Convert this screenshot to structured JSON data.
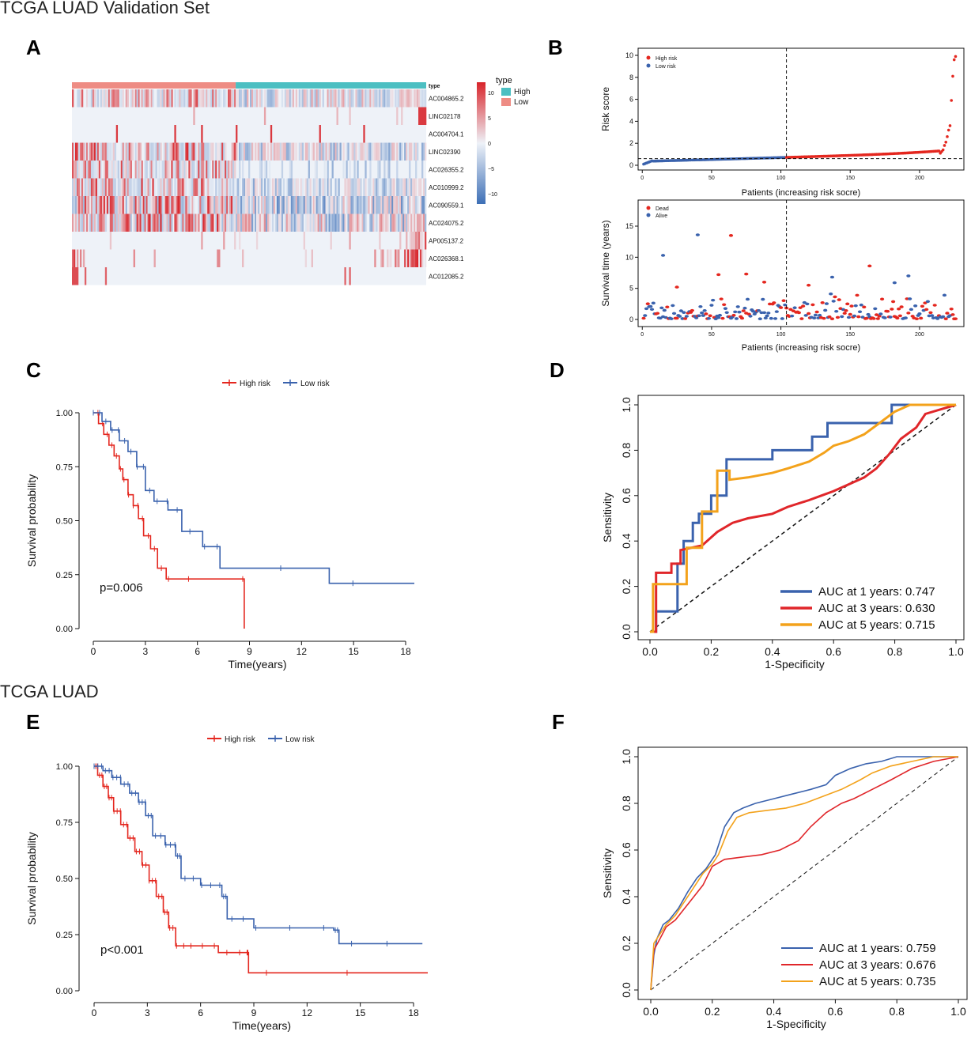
{
  "sections": {
    "top": "TCGA LUAD Validation Set",
    "bottom": "TCGA LUAD"
  },
  "panels": {
    "A": "A",
    "B": "B",
    "C": "C",
    "D": "D",
    "E": "E",
    "F": "F"
  },
  "colors": {
    "high": "#e4271f",
    "low": "#3a62ad",
    "auc3": "#e0262a",
    "auc5": "#f3a21b",
    "heat_pos": "#d8242a",
    "heat_neg": "#3d6fb6",
    "heat_mid": "#eef2f8",
    "type_high": "#4cbfc2",
    "type_low": "#ee8c84"
  },
  "chart_data": [
    {
      "id": "A",
      "type": "heatmap",
      "row_labels": [
        "AC004865.2",
        "LINC02178",
        "AC004704.1",
        "LINC02390",
        "AC026355.2",
        "AC010999.2",
        "AC090559.1",
        "AC024075.2",
        "AP005137.2",
        "AC026368.1",
        "AC012085.2"
      ],
      "annotation_label": "type",
      "groups": [
        {
          "name": "Low",
          "count": 104
        },
        {
          "name": "High",
          "count": 121
        }
      ],
      "legend_title": "type",
      "legend_entries": [
        "High",
        "Low"
      ],
      "colorbar_ticks": [
        "10",
        "5",
        "0",
        "−5",
        "−10"
      ],
      "colorbar_range": [
        -12,
        12
      ]
    },
    {
      "id": "B1",
      "type": "scatter",
      "xlabel": "Patients (increasing risk socre)",
      "ylabel": "Risk score",
      "xlim": [
        0,
        230
      ],
      "ylim": [
        0,
        10
      ],
      "xticks": [
        "0",
        "50",
        "100",
        "150",
        "200"
      ],
      "yticks": [
        "0",
        "2",
        "4",
        "6",
        "8",
        "10"
      ],
      "legend": [
        "High risk",
        "Low risk"
      ],
      "cutoff_index": 104,
      "cutoff_value": 0.6,
      "tail_values": [
        1.1,
        1.25,
        1.4,
        1.8,
        2.1,
        2.6,
        3.2,
        3.6,
        5.9,
        8.1,
        9.6,
        9.9
      ]
    },
    {
      "id": "B2",
      "type": "scatter",
      "xlabel": "Patients (increasing risk socre)",
      "ylabel": "Survival time (years)",
      "xlim": [
        0,
        230
      ],
      "ylim": [
        0,
        18
      ],
      "xticks": [
        "0",
        "50",
        "100",
        "150",
        "200"
      ],
      "yticks": [
        "0",
        "5",
        "10",
        "15"
      ],
      "legend": [
        "Dead",
        "Alive"
      ],
      "cutoff_index": 104,
      "highlights": [
        {
          "x": 15,
          "y": 10.3,
          "status": "Alive"
        },
        {
          "x": 40,
          "y": 13.6,
          "status": "Alive"
        },
        {
          "x": 64,
          "y": 13.5,
          "status": "Dead"
        },
        {
          "x": 55,
          "y": 7.2,
          "status": "Dead"
        },
        {
          "x": 75,
          "y": 7.3,
          "status": "Dead"
        },
        {
          "x": 164,
          "y": 8.6,
          "status": "Dead"
        },
        {
          "x": 137,
          "y": 6.8,
          "status": "Alive"
        },
        {
          "x": 192,
          "y": 7.0,
          "status": "Alive"
        },
        {
          "x": 25,
          "y": 5.2,
          "status": "Dead"
        },
        {
          "x": 88,
          "y": 6.0,
          "status": "Dead"
        },
        {
          "x": 120,
          "y": 5.5,
          "status": "Dead"
        },
        {
          "x": 182,
          "y": 5.9,
          "status": "Alive"
        }
      ]
    },
    {
      "id": "C",
      "type": "line",
      "title": "",
      "legend": [
        "High risk",
        "Low risk"
      ],
      "xlabel": "Time(years)",
      "ylabel": "Survival probability",
      "xlim": [
        0,
        19
      ],
      "ylim": [
        0,
        1
      ],
      "xticks": [
        "0",
        "3",
        "6",
        "9",
        "12",
        "15",
        "18"
      ],
      "yticks": [
        "0.00",
        "0.25",
        "0.50",
        "0.75",
        "1.00"
      ],
      "annotation": "p=0.006",
      "series": [
        {
          "name": "High risk",
          "x": [
            0,
            0.3,
            0.6,
            0.9,
            1.2,
            1.5,
            1.7,
            2.0,
            2.3,
            2.6,
            2.9,
            3.3,
            3.7,
            4.2,
            4.6,
            8.6,
            8.7
          ],
          "y": [
            1,
            0.95,
            0.9,
            0.85,
            0.8,
            0.74,
            0.69,
            0.62,
            0.57,
            0.51,
            0.43,
            0.37,
            0.28,
            0.23,
            0.23,
            0.23,
            0
          ]
        },
        {
          "name": "Low risk",
          "x": [
            0,
            0.5,
            1.0,
            1.5,
            2.0,
            2.5,
            3.0,
            3.5,
            4.3,
            5.1,
            6.3,
            7.3,
            13.6,
            18.5
          ],
          "y": [
            1,
            0.96,
            0.92,
            0.87,
            0.82,
            0.75,
            0.64,
            0.59,
            0.55,
            0.45,
            0.38,
            0.28,
            0.21,
            0.21
          ]
        }
      ]
    },
    {
      "id": "D",
      "type": "line",
      "xlabel": "1-Specificity",
      "ylabel": "Sensitivity",
      "xlim": [
        0,
        1
      ],
      "ylim": [
        0,
        1
      ],
      "xticks": [
        "0.0",
        "0.2",
        "0.4",
        "0.6",
        "0.8",
        "1.0"
      ],
      "yticks": [
        "0.0",
        "0.2",
        "0.4",
        "0.6",
        "0.8",
        "1.0"
      ],
      "series": [
        {
          "name": "AUC at 1 years: 0.747",
          "x": [
            0,
            0.02,
            0.02,
            0.09,
            0.09,
            0.11,
            0.11,
            0.14,
            0.14,
            0.16,
            0.16,
            0.2,
            0.2,
            0.25,
            0.25,
            0.4,
            0.4,
            0.53,
            0.53,
            0.58,
            0.58,
            0.65,
            0.65,
            0.79,
            0.79,
            1.0
          ],
          "y": [
            0,
            0,
            0.09,
            0.09,
            0.3,
            0.3,
            0.4,
            0.4,
            0.48,
            0.48,
            0.52,
            0.52,
            0.6,
            0.6,
            0.76,
            0.76,
            0.8,
            0.8,
            0.86,
            0.86,
            0.92,
            0.92,
            0.92,
            0.92,
            1.0,
            1.0
          ]
        },
        {
          "name": "AUC at 3 years: 0.630",
          "x": [
            0,
            0.02,
            0.02,
            0.07,
            0.07,
            0.1,
            0.1,
            0.17,
            0.22,
            0.27,
            0.32,
            0.4,
            0.45,
            0.52,
            0.56,
            0.6,
            0.65,
            0.7,
            0.74,
            0.78,
            0.82,
            0.87,
            0.9,
            0.95,
            1.0
          ],
          "y": [
            0,
            0,
            0.26,
            0.26,
            0.3,
            0.3,
            0.36,
            0.38,
            0.44,
            0.48,
            0.5,
            0.52,
            0.55,
            0.58,
            0.6,
            0.62,
            0.65,
            0.68,
            0.72,
            0.78,
            0.85,
            0.9,
            0.96,
            0.98,
            1.0
          ]
        },
        {
          "name": "AUC at 5 years: 0.715",
          "x": [
            0,
            0.01,
            0.01,
            0.12,
            0.12,
            0.17,
            0.17,
            0.22,
            0.22,
            0.26,
            0.26,
            0.32,
            0.4,
            0.45,
            0.52,
            0.57,
            0.6,
            0.65,
            0.7,
            0.75,
            0.8,
            0.85,
            1.0
          ],
          "y": [
            0,
            0,
            0.21,
            0.21,
            0.37,
            0.37,
            0.53,
            0.53,
            0.71,
            0.71,
            0.67,
            0.68,
            0.7,
            0.72,
            0.75,
            0.79,
            0.82,
            0.84,
            0.87,
            0.92,
            0.97,
            1.0,
            1.0
          ]
        }
      ]
    },
    {
      "id": "E",
      "type": "line",
      "legend": [
        "High risk",
        "Low risk"
      ],
      "xlabel": "Time(years)",
      "ylabel": "Survival probability",
      "xlim": [
        0,
        19
      ],
      "ylim": [
        0,
        1
      ],
      "xticks": [
        "0",
        "3",
        "6",
        "9",
        "12",
        "15",
        "18"
      ],
      "yticks": [
        "0.00",
        "0.25",
        "0.50",
        "0.75",
        "1.00"
      ],
      "annotation": "p<0.001",
      "series": [
        {
          "name": "High risk",
          "x": [
            0,
            0.2,
            0.5,
            0.8,
            1.1,
            1.5,
            1.9,
            2.3,
            2.7,
            3.1,
            3.5,
            3.9,
            4.2,
            4.6,
            5.5,
            7.0,
            8.6,
            8.7,
            18.8
          ],
          "y": [
            1,
            0.96,
            0.91,
            0.86,
            0.8,
            0.74,
            0.68,
            0.62,
            0.56,
            0.49,
            0.42,
            0.35,
            0.28,
            0.2,
            0.2,
            0.17,
            0.17,
            0.08,
            0.08
          ]
        },
        {
          "name": "Low risk",
          "x": [
            0,
            0.5,
            1.0,
            1.5,
            2.0,
            2.5,
            2.9,
            3.3,
            4.0,
            4.6,
            4.9,
            6.0,
            7.2,
            7.5,
            9.0,
            13.5,
            13.8,
            18.5
          ],
          "y": [
            1,
            0.98,
            0.95,
            0.92,
            0.88,
            0.84,
            0.78,
            0.69,
            0.65,
            0.6,
            0.5,
            0.47,
            0.42,
            0.32,
            0.28,
            0.27,
            0.21,
            0.21
          ]
        }
      ]
    },
    {
      "id": "F",
      "type": "line",
      "xlabel": "1-Specificity",
      "ylabel": "Sensitivity",
      "xlim": [
        0,
        1
      ],
      "ylim": [
        0,
        1
      ],
      "xticks": [
        "0.0",
        "0.2",
        "0.4",
        "0.6",
        "0.8",
        "1.0"
      ],
      "yticks": [
        "0.0",
        "0.2",
        "0.4",
        "0.6",
        "0.8",
        "1.0"
      ],
      "series": [
        {
          "name": "AUC at 1 years: 0.759",
          "x": [
            0,
            0.01,
            0.02,
            0.04,
            0.06,
            0.09,
            0.12,
            0.15,
            0.18,
            0.21,
            0.24,
            0.27,
            0.3,
            0.34,
            0.4,
            0.46,
            0.52,
            0.57,
            0.6,
            0.65,
            0.7,
            0.75,
            0.8,
            0.85,
            1.0
          ],
          "y": [
            0,
            0.15,
            0.22,
            0.28,
            0.3,
            0.35,
            0.42,
            0.48,
            0.52,
            0.58,
            0.7,
            0.76,
            0.78,
            0.8,
            0.82,
            0.84,
            0.86,
            0.88,
            0.92,
            0.95,
            0.97,
            0.98,
            1.0,
            1.0,
            1.0
          ]
        },
        {
          "name": "AUC at 3 years: 0.676",
          "x": [
            0,
            0.01,
            0.03,
            0.05,
            0.08,
            0.11,
            0.14,
            0.17,
            0.2,
            0.24,
            0.3,
            0.36,
            0.42,
            0.48,
            0.52,
            0.57,
            0.62,
            0.66,
            0.72,
            0.78,
            0.85,
            0.92,
            1.0
          ],
          "y": [
            0,
            0.17,
            0.22,
            0.27,
            0.3,
            0.35,
            0.4,
            0.45,
            0.53,
            0.56,
            0.57,
            0.58,
            0.6,
            0.64,
            0.7,
            0.76,
            0.8,
            0.82,
            0.86,
            0.9,
            0.95,
            0.98,
            1.0
          ]
        },
        {
          "name": "AUC at 5 years: 0.735",
          "x": [
            0,
            0.01,
            0.03,
            0.05,
            0.08,
            0.11,
            0.14,
            0.17,
            0.2,
            0.22,
            0.25,
            0.28,
            0.32,
            0.38,
            0.44,
            0.5,
            0.56,
            0.62,
            0.68,
            0.72,
            0.78,
            0.85,
            0.92,
            1.0
          ],
          "y": [
            0,
            0.2,
            0.24,
            0.28,
            0.32,
            0.38,
            0.44,
            0.5,
            0.54,
            0.58,
            0.68,
            0.74,
            0.76,
            0.77,
            0.78,
            0.8,
            0.83,
            0.86,
            0.9,
            0.93,
            0.96,
            0.98,
            1.0,
            1.0
          ]
        }
      ]
    }
  ]
}
